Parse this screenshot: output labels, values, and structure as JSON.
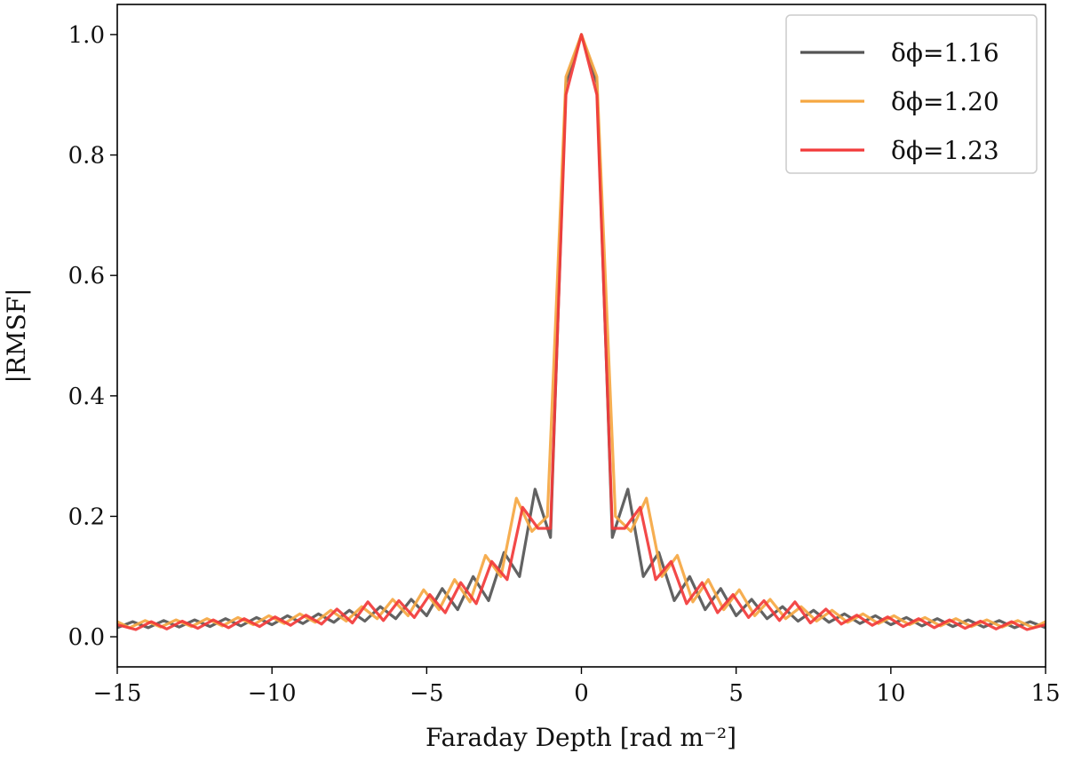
{
  "chart_data": {
    "type": "line",
    "xlabel": "Faraday Depth [rad m⁻²]",
    "ylabel": "|RMSF|",
    "xlim": [
      -15,
      15
    ],
    "ylim": [
      -0.05,
      1.05
    ],
    "xticks": [
      -15,
      -10,
      -5,
      0,
      5,
      10,
      15
    ],
    "xtick_labels": [
      "−15",
      "−10",
      "−5",
      "0",
      "5",
      "10",
      "15"
    ],
    "yticks": [
      0.0,
      0.2,
      0.4,
      0.6,
      0.8,
      1.0
    ],
    "ytick_labels": [
      "0.0",
      "0.2",
      "0.4",
      "0.6",
      "0.8",
      "1.0"
    ],
    "grid": false,
    "legend_position": "top-right",
    "series": [
      {
        "name": "δϕ=1.16",
        "color": "#555555",
        "x": [
          -15,
          -14.5,
          -14,
          -13.5,
          -13,
          -12.5,
          -12,
          -11.5,
          -11,
          -10.5,
          -10,
          -9.5,
          -9,
          -8.5,
          -8,
          -7.5,
          -7,
          -6.5,
          -6,
          -5.5,
          -5,
          -4.5,
          -4,
          -3.5,
          -3,
          -2.5,
          -2,
          -1.5,
          -1,
          -0.5,
          0,
          0.5,
          1,
          1.5,
          2,
          2.5,
          3,
          3.5,
          4,
          4.5,
          5,
          5.5,
          6,
          6.5,
          7,
          7.5,
          8,
          8.5,
          9,
          9.5,
          10,
          10.5,
          11,
          11.5,
          12,
          12.5,
          13,
          13.5,
          14,
          14.5,
          15
        ],
        "y": [
          0.015,
          0.025,
          0.015,
          0.027,
          0.016,
          0.028,
          0.017,
          0.03,
          0.018,
          0.032,
          0.02,
          0.035,
          0.022,
          0.038,
          0.024,
          0.044,
          0.026,
          0.05,
          0.03,
          0.062,
          0.035,
          0.08,
          0.045,
          0.1,
          0.06,
          0.14,
          0.1,
          0.245,
          0.165,
          0.92,
          1.0,
          0.92,
          0.165,
          0.245,
          0.1,
          0.14,
          0.06,
          0.1,
          0.045,
          0.08,
          0.035,
          0.062,
          0.03,
          0.05,
          0.026,
          0.044,
          0.024,
          0.038,
          0.022,
          0.035,
          0.02,
          0.032,
          0.018,
          0.03,
          0.017,
          0.028,
          0.016,
          0.027,
          0.015,
          0.025,
          0.015
        ]
      },
      {
        "name": "δϕ=1.20",
        "color": "#f5a742",
        "x": [
          -15,
          -14.6,
          -14.1,
          -13.6,
          -13.1,
          -12.6,
          -12.1,
          -11.6,
          -11.1,
          -10.6,
          -10.1,
          -9.6,
          -9.1,
          -8.6,
          -8.1,
          -7.6,
          -7.1,
          -6.6,
          -6.1,
          -5.6,
          -5.1,
          -4.6,
          -4.1,
          -3.6,
          -3.1,
          -2.6,
          -2.1,
          -1.6,
          -1.1,
          -0.5,
          0,
          0.5,
          1.1,
          1.6,
          2.1,
          2.6,
          3.1,
          3.6,
          4.1,
          4.6,
          5.1,
          5.6,
          6.1,
          6.6,
          7.1,
          7.6,
          8.1,
          8.6,
          9.1,
          9.6,
          10.1,
          10.6,
          11.1,
          11.6,
          12.1,
          12.6,
          13.1,
          13.6,
          14.1,
          14.6,
          15
        ],
        "y": [
          0.025,
          0.015,
          0.027,
          0.016,
          0.028,
          0.017,
          0.03,
          0.018,
          0.032,
          0.02,
          0.035,
          0.022,
          0.038,
          0.024,
          0.044,
          0.026,
          0.05,
          0.03,
          0.062,
          0.035,
          0.078,
          0.045,
          0.095,
          0.058,
          0.135,
          0.1,
          0.23,
          0.175,
          0.2,
          0.93,
          1.0,
          0.93,
          0.2,
          0.175,
          0.23,
          0.1,
          0.135,
          0.058,
          0.095,
          0.045,
          0.078,
          0.035,
          0.062,
          0.03,
          0.05,
          0.026,
          0.044,
          0.024,
          0.038,
          0.022,
          0.035,
          0.02,
          0.032,
          0.018,
          0.03,
          0.017,
          0.028,
          0.016,
          0.027,
          0.015,
          0.025
        ]
      },
      {
        "name": "δϕ=1.23",
        "color": "#f23a3a",
        "x": [
          -15,
          -14.4,
          -13.9,
          -13.4,
          -12.9,
          -12.4,
          -11.9,
          -11.4,
          -10.9,
          -10.4,
          -9.9,
          -9.4,
          -8.9,
          -8.4,
          -7.9,
          -7.4,
          -6.9,
          -6.4,
          -5.9,
          -5.4,
          -4.9,
          -4.4,
          -3.9,
          -3.4,
          -2.9,
          -2.4,
          -1.9,
          -1.4,
          -1.0,
          -0.5,
          0,
          0.5,
          1.0,
          1.4,
          1.9,
          2.4,
          2.9,
          3.4,
          3.9,
          4.4,
          4.9,
          5.4,
          5.9,
          6.4,
          6.9,
          7.4,
          7.9,
          8.4,
          8.9,
          9.4,
          9.9,
          10.4,
          10.9,
          11.4,
          11.9,
          12.4,
          12.9,
          13.4,
          13.9,
          14.4,
          15
        ],
        "y": [
          0.02,
          0.012,
          0.025,
          0.013,
          0.026,
          0.014,
          0.028,
          0.015,
          0.03,
          0.017,
          0.033,
          0.019,
          0.036,
          0.021,
          0.046,
          0.023,
          0.058,
          0.027,
          0.06,
          0.032,
          0.07,
          0.04,
          0.09,
          0.055,
          0.125,
          0.095,
          0.215,
          0.18,
          0.18,
          0.9,
          1.0,
          0.9,
          0.18,
          0.18,
          0.215,
          0.095,
          0.125,
          0.055,
          0.09,
          0.04,
          0.07,
          0.032,
          0.06,
          0.027,
          0.058,
          0.023,
          0.046,
          0.021,
          0.036,
          0.019,
          0.033,
          0.017,
          0.03,
          0.015,
          0.028,
          0.014,
          0.026,
          0.013,
          0.025,
          0.012,
          0.02
        ]
      }
    ]
  }
}
